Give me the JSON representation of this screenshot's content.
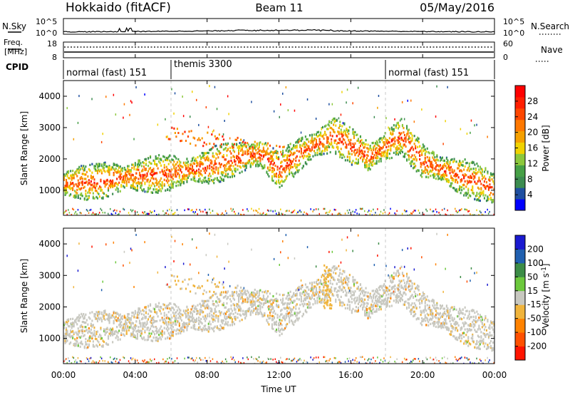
{
  "header": {
    "station": "Hokkaido (fitACF)",
    "beam": "Beam 11",
    "date": "05/May/2016"
  },
  "top_panels": {
    "nsky_label": "N.Sky",
    "nsky_ticks": [
      "10^5",
      "10^0"
    ],
    "nsearch_label": "N.Search",
    "freq_label_1": "Freq.",
    "freq_label_2": "[MHz]",
    "freq_ticks": [
      "18",
      "8"
    ],
    "nave_label": "Nave",
    "nave_ticks": [
      "60",
      "0"
    ],
    "cpid_label": "CPID",
    "cpid_segments": [
      {
        "label": "normal (fast) 151",
        "start_hour": 0
      },
      {
        "label": "themis 3300",
        "start_hour": 6
      },
      {
        "label": "normal (fast) 151",
        "start_hour": 18
      }
    ]
  },
  "chart_data": [
    {
      "type": "heatmap",
      "title": "",
      "quantity": "Power",
      "xlabel": "Time UT",
      "ylabel": "Slant Range [km]",
      "xlim_hours": [
        0,
        24
      ],
      "ylim_km": [
        200,
        4500
      ],
      "x_tick_labels": [
        "00:00",
        "04:00",
        "08:00",
        "12:00",
        "16:00",
        "20:00",
        "00:00"
      ],
      "y_tick_values": [
        1000,
        2000,
        3000,
        4000
      ],
      "colorbar": {
        "label": "Power [dB]",
        "tick_labels": [
          "4",
          "8",
          "12",
          "16",
          "20",
          "24",
          "28"
        ],
        "colors": [
          "#0000ff",
          "#1f4fa0",
          "#3c8c50",
          "#46a046",
          "#8cc83c",
          "#f0d200",
          "#f5a000",
          "#ff7800",
          "#ff4600",
          "#ff1e00",
          "#ff0000"
        ]
      },
      "echo_band_center_km": [
        {
          "hour": 0.0,
          "km": 1200
        },
        {
          "hour": 2.0,
          "km": 1280
        },
        {
          "hour": 4.0,
          "km": 1450
        },
        {
          "hour": 6.0,
          "km": 1550
        },
        {
          "hour": 8.0,
          "km": 1750
        },
        {
          "hour": 10.0,
          "km": 2050
        },
        {
          "hour": 11.0,
          "km": 2150
        },
        {
          "hour": 12.0,
          "km": 1600
        },
        {
          "hour": 13.0,
          "km": 2100
        },
        {
          "hour": 14.0,
          "km": 2450
        },
        {
          "hour": 15.0,
          "km": 2750
        },
        {
          "hour": 16.0,
          "km": 2400
        },
        {
          "hour": 17.0,
          "km": 2050
        },
        {
          "hour": 18.0,
          "km": 2450
        },
        {
          "hour": 18.8,
          "km": 2700
        },
        {
          "hour": 20.0,
          "km": 1900
        },
        {
          "hour": 22.0,
          "km": 1450
        },
        {
          "hour": 24.0,
          "km": 1050
        }
      ]
    },
    {
      "type": "heatmap",
      "title": "",
      "quantity": "Velocity",
      "xlabel": "Time UT",
      "ylabel": "Slant Range [km]",
      "xlim_hours": [
        0,
        24
      ],
      "ylim_km": [
        200,
        4500
      ],
      "x_tick_labels": [
        "00:00",
        "04:00",
        "08:00",
        "12:00",
        "16:00",
        "20:00",
        "00:00"
      ],
      "y_tick_values": [
        1000,
        2000,
        3000,
        4000
      ],
      "colorbar": {
        "label": "Velocity [m s-1]",
        "tick_labels": [
          "200",
          "100",
          "50",
          "15",
          "-15",
          "-50",
          "-100",
          "-200"
        ],
        "colors": [
          "#1a1ad0",
          "#2060b0",
          "#3c8c46",
          "#6cc83c",
          "#c8c8c0",
          "#f0b43c",
          "#ff8200",
          "#ff5000",
          "#ff1400"
        ]
      }
    }
  ]
}
